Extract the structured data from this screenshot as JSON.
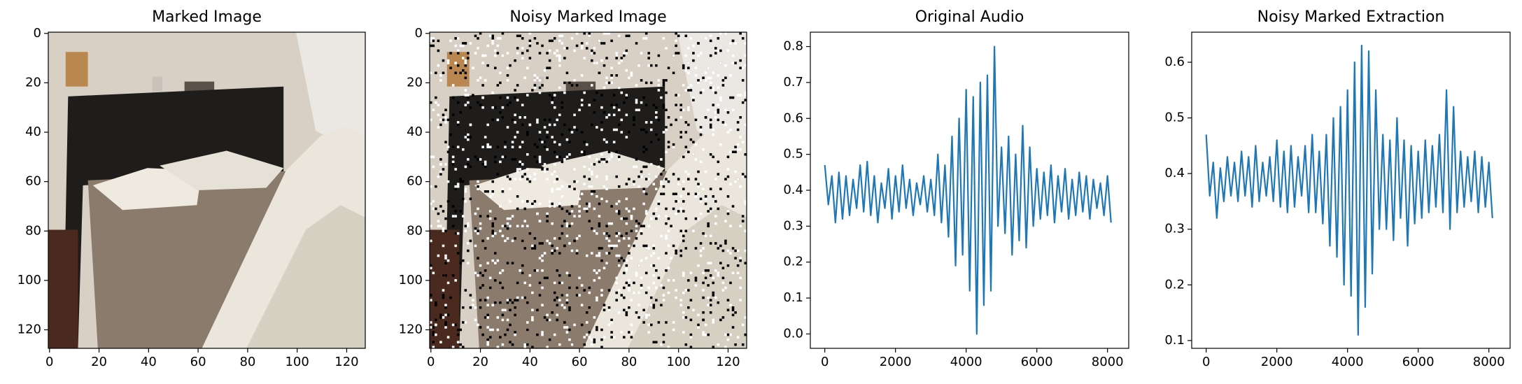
{
  "chart_data": [
    {
      "type": "image",
      "title": "Marked Image",
      "xlim": [
        -0.5,
        127.5
      ],
      "ylim": [
        127.5,
        -0.5
      ],
      "xticks": [
        0,
        20,
        40,
        60,
        80,
        100,
        120
      ],
      "yticks": [
        0,
        20,
        40,
        60,
        80,
        100,
        120
      ],
      "noise": false
    },
    {
      "type": "image",
      "title": "Noisy Marked Image",
      "xlim": [
        -0.5,
        127.5
      ],
      "ylim": [
        127.5,
        -0.5
      ],
      "xticks": [
        0,
        20,
        40,
        60,
        80,
        100,
        120
      ],
      "yticks": [
        0,
        20,
        40,
        60,
        80,
        100,
        120
      ],
      "noise": true
    },
    {
      "type": "line",
      "title": "Original Audio",
      "color": "#1f77b4",
      "xlim": [
        -409.55,
        8600.55
      ],
      "ylim": [
        -0.04,
        0.84
      ],
      "xticks": [
        0,
        2000,
        4000,
        6000,
        8000
      ],
      "yticks": [
        {
          "value": 0,
          "label": "0.0"
        },
        0.1,
        0.2,
        0.3,
        0.4,
        0.5,
        0.6,
        0.7,
        0.8
      ],
      "x": [
        0,
        100,
        200,
        300,
        400,
        500,
        600,
        700,
        800,
        900,
        1000,
        1100,
        1200,
        1300,
        1400,
        1500,
        1600,
        1700,
        1800,
        1900,
        2000,
        2100,
        2200,
        2300,
        2400,
        2500,
        2600,
        2700,
        2800,
        2900,
        3000,
        3100,
        3200,
        3300,
        3400,
        3500,
        3600,
        3700,
        3800,
        3900,
        4000,
        4100,
        4200,
        4300,
        4400,
        4500,
        4600,
        4700,
        4800,
        4900,
        5000,
        5100,
        5200,
        5300,
        5400,
        5500,
        5600,
        5700,
        5800,
        5900,
        6000,
        6100,
        6200,
        6300,
        6400,
        6500,
        6600,
        6700,
        6800,
        6900,
        7000,
        7100,
        7200,
        7300,
        7400,
        7500,
        7600,
        7700,
        7800,
        7900,
        8000,
        8100
      ],
      "values": [
        0.47,
        0.36,
        0.44,
        0.31,
        0.45,
        0.32,
        0.44,
        0.33,
        0.43,
        0.35,
        0.47,
        0.34,
        0.48,
        0.33,
        0.44,
        0.31,
        0.42,
        0.35,
        0.46,
        0.32,
        0.44,
        0.34,
        0.47,
        0.35,
        0.43,
        0.33,
        0.42,
        0.36,
        0.44,
        0.34,
        0.43,
        0.33,
        0.5,
        0.31,
        0.47,
        0.27,
        0.55,
        0.19,
        0.6,
        0.22,
        0.68,
        0.12,
        0.66,
        0.0,
        0.7,
        0.08,
        0.72,
        0.12,
        0.8,
        0.3,
        0.52,
        0.28,
        0.55,
        0.22,
        0.5,
        0.26,
        0.58,
        0.24,
        0.52,
        0.3,
        0.46,
        0.32,
        0.45,
        0.33,
        0.47,
        0.31,
        0.44,
        0.34,
        0.46,
        0.32,
        0.43,
        0.33,
        0.45,
        0.34,
        0.44,
        0.32,
        0.43,
        0.35,
        0.42,
        0.33,
        0.44,
        0.31
      ]
    },
    {
      "type": "line",
      "title": "Noisy Marked Extraction",
      "color": "#1f77b4",
      "xlim": [
        -409.55,
        8600.55
      ],
      "ylim": [
        0.086,
        0.654
      ],
      "xticks": [
        0,
        2000,
        4000,
        6000,
        8000
      ],
      "yticks": [
        0.1,
        0.2,
        0.3,
        0.4,
        0.5,
        0.6
      ],
      "x": [
        0,
        100,
        200,
        300,
        400,
        500,
        600,
        700,
        800,
        900,
        1000,
        1100,
        1200,
        1300,
        1400,
        1500,
        1600,
        1700,
        1800,
        1900,
        2000,
        2100,
        2200,
        2300,
        2400,
        2500,
        2600,
        2700,
        2800,
        2900,
        3000,
        3100,
        3200,
        3300,
        3400,
        3500,
        3600,
        3700,
        3800,
        3900,
        4000,
        4100,
        4200,
        4300,
        4400,
        4500,
        4600,
        4700,
        4800,
        4900,
        5000,
        5100,
        5200,
        5300,
        5400,
        5500,
        5600,
        5700,
        5800,
        5900,
        6000,
        6100,
        6200,
        6300,
        6400,
        6500,
        6600,
        6700,
        6800,
        6900,
        7000,
        7100,
        7200,
        7300,
        7400,
        7500,
        7600,
        7700,
        7800,
        7900,
        8000,
        8100
      ],
      "values": [
        0.47,
        0.36,
        0.42,
        0.32,
        0.41,
        0.35,
        0.43,
        0.36,
        0.42,
        0.35,
        0.44,
        0.36,
        0.43,
        0.34,
        0.45,
        0.35,
        0.42,
        0.36,
        0.43,
        0.35,
        0.46,
        0.34,
        0.44,
        0.33,
        0.45,
        0.34,
        0.43,
        0.36,
        0.45,
        0.33,
        0.47,
        0.33,
        0.44,
        0.31,
        0.47,
        0.27,
        0.5,
        0.25,
        0.52,
        0.2,
        0.55,
        0.18,
        0.6,
        0.11,
        0.63,
        0.16,
        0.62,
        0.22,
        0.55,
        0.3,
        0.47,
        0.3,
        0.46,
        0.28,
        0.5,
        0.32,
        0.46,
        0.27,
        0.45,
        0.31,
        0.44,
        0.32,
        0.46,
        0.33,
        0.45,
        0.34,
        0.47,
        0.33,
        0.55,
        0.3,
        0.52,
        0.33,
        0.44,
        0.34,
        0.43,
        0.35,
        0.44,
        0.33,
        0.43,
        0.34,
        0.42,
        0.32
      ]
    }
  ]
}
